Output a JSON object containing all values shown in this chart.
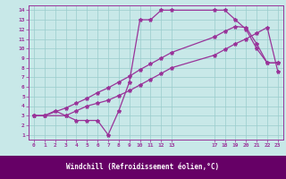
{
  "xlabel": "Windchill (Refroidissement éolien,°C)",
  "line_color": "#993399",
  "background_color": "#c8e8e8",
  "grid_color": "#99cccc",
  "axes_facecolor": "#c8e8e8",
  "xlabel_bg": "#660066",
  "xlabel_fg": "#ffffff",
  "xlim": [
    -0.5,
    23.5
  ],
  "ylim": [
    0.5,
    14.5
  ],
  "xticks": [
    0,
    1,
    2,
    3,
    4,
    5,
    6,
    7,
    8,
    9,
    10,
    11,
    12,
    13,
    17,
    18,
    19,
    20,
    21,
    22,
    23
  ],
  "yticks": [
    1,
    2,
    3,
    4,
    5,
    6,
    7,
    8,
    9,
    10,
    11,
    12,
    13,
    14
  ],
  "line1_x": [
    0,
    1,
    3,
    4,
    5,
    6,
    7,
    8,
    9,
    10,
    11,
    12,
    13,
    17,
    18,
    19,
    20,
    21,
    22,
    23
  ],
  "line1_y": [
    3,
    3,
    3,
    3.5,
    4,
    4.3,
    4.6,
    5.1,
    5.6,
    6.2,
    6.8,
    7.4,
    8.0,
    9.3,
    9.9,
    10.5,
    11.0,
    11.6,
    12.2,
    7.6
  ],
  "line2_x": [
    0,
    1,
    3,
    4,
    5,
    6,
    7,
    8,
    9,
    10,
    11,
    12,
    13,
    17,
    18,
    19,
    20,
    21,
    22,
    23
  ],
  "line2_y": [
    3,
    3,
    3.8,
    4.3,
    4.8,
    5.4,
    5.9,
    6.5,
    7.1,
    7.8,
    8.4,
    9.0,
    9.6,
    11.2,
    11.8,
    12.3,
    12.2,
    10.5,
    8.5,
    8.5
  ],
  "line3_x": [
    0,
    1,
    2,
    3,
    4,
    5,
    6,
    7,
    8,
    9,
    10,
    11,
    12,
    13,
    17,
    18,
    19,
    20,
    21,
    22,
    23
  ],
  "line3_y": [
    3,
    3,
    3.5,
    3,
    2.5,
    2.5,
    2.5,
    1,
    3.5,
    6.5,
    13,
    13,
    14,
    14,
    14,
    14,
    13,
    12,
    10,
    8.5,
    8.5
  ]
}
